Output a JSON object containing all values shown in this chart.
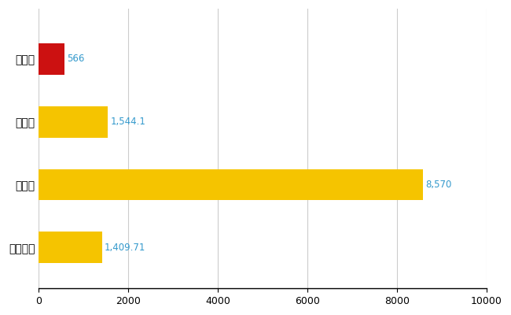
{
  "categories": [
    "壱岐市",
    "県平均",
    "県最大",
    "全国平均"
  ],
  "values": [
    566,
    1544.1,
    8570,
    1409.71
  ],
  "labels": [
    "566",
    "1,544.1",
    "8,570",
    "1,409.71"
  ],
  "bar_colors": [
    "#cc1111",
    "#f5c400",
    "#f5c400",
    "#f5c400"
  ],
  "xlim": [
    0,
    10000
  ],
  "xticks": [
    0,
    2000,
    4000,
    6000,
    8000,
    10000
  ],
  "grid_color": "#cccccc",
  "label_color": "#3399cc",
  "label_fontsize": 8.5,
  "tick_fontsize": 9,
  "ytick_fontsize": 10,
  "bar_height": 0.5,
  "fig_width": 6.5,
  "fig_height": 4.0,
  "dpi": 100
}
